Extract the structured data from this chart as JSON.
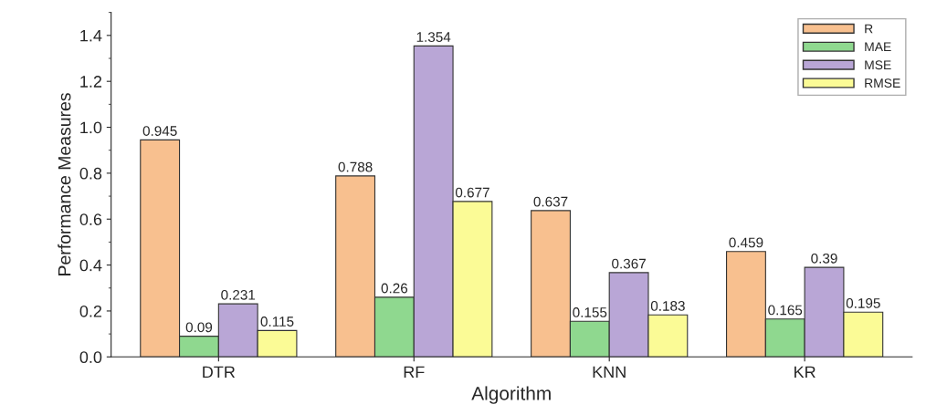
{
  "chart_data": {
    "type": "bar",
    "xlabel": "Algorithm",
    "ylabel": "Performance Measures",
    "categories": [
      "DTR",
      "RF",
      "KNN",
      "KR"
    ],
    "series": [
      {
        "name": "R",
        "color": "#f8c08f",
        "values": [
          0.945,
          0.788,
          0.637,
          0.459
        ]
      },
      {
        "name": "MAE",
        "color": "#8fd88f",
        "values": [
          0.09,
          0.26,
          0.155,
          0.165
        ]
      },
      {
        "name": "MSE",
        "color": "#b9a6d6",
        "values": [
          0.231,
          1.354,
          0.367,
          0.39
        ]
      },
      {
        "name": "RMSE",
        "color": "#fbfb96",
        "values": [
          0.115,
          0.677,
          0.183,
          0.195
        ]
      }
    ],
    "ylim": [
      0,
      1.5
    ],
    "yticks": [
      {
        "value": 0,
        "label": "0.0"
      },
      0.2,
      0.4,
      0.6,
      0.8,
      {
        "value": 1,
        "label": "1.0"
      },
      1.2,
      1.4
    ],
    "data_labels": true,
    "legend": "top right",
    "grid": false
  }
}
